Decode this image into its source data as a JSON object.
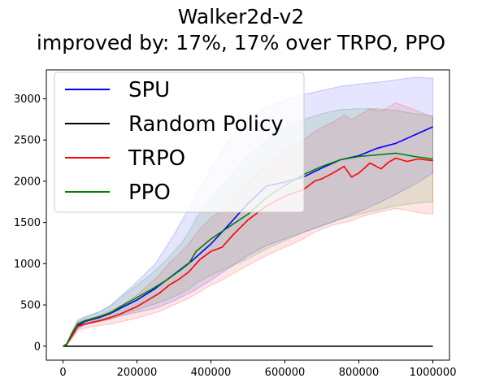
{
  "chart_data": {
    "type": "line",
    "title": "Walker2d-v2",
    "subtitle": "improved by: 17%, 17% over TRPO, PPO",
    "xlabel": "",
    "ylabel": "",
    "xlim": [
      -45000,
      1045000
    ],
    "ylim": [
      -170,
      3350
    ],
    "x_ticks": [
      0,
      200000,
      400000,
      600000,
      800000,
      1000000
    ],
    "x_tick_labels": [
      "0",
      "200000",
      "400000",
      "600000",
      "800000",
      "1000000"
    ],
    "y_ticks": [
      0,
      500,
      1000,
      1500,
      2000,
      2500,
      3000
    ],
    "y_tick_labels": [
      "0",
      "500",
      "1000",
      "1500",
      "2000",
      "2500",
      "3000"
    ],
    "grid": false,
    "legend_position": "top-left",
    "series": [
      {
        "name": "SPU",
        "color": "#0000ff",
        "x": [
          0,
          10000,
          25000,
          40000,
          60000,
          80000,
          100000,
          130000,
          160000,
          200000,
          250000,
          300000,
          350000,
          400000,
          450000,
          500000,
          550000,
          600000,
          650000,
          700000,
          750000,
          800000,
          850000,
          900000,
          950000,
          1000000
        ],
        "y": [
          0,
          20,
          140,
          250,
          300,
          325,
          350,
          400,
          470,
          560,
          700,
          870,
          1040,
          1240,
          1480,
          1730,
          1940,
          1990,
          2050,
          2160,
          2260,
          2310,
          2400,
          2460,
          2560,
          2660
        ],
        "band_low": [
          0,
          15,
          110,
          210,
          260,
          285,
          300,
          330,
          370,
          410,
          460,
          550,
          660,
          800,
          950,
          1100,
          1220,
          1300,
          1380,
          1460,
          1540,
          1630,
          1730,
          1840,
          1960,
          2100
        ],
        "band_high": [
          0,
          30,
          180,
          300,
          350,
          385,
          420,
          500,
          620,
          780,
          1000,
          1350,
          1750,
          2150,
          2500,
          2750,
          2900,
          2980,
          3050,
          3100,
          3150,
          3180,
          3200,
          3230,
          3260,
          3250
        ]
      },
      {
        "name": "Random Policy",
        "color": "#000000",
        "x": [
          0,
          1000000
        ],
        "y": [
          0,
          0
        ]
      },
      {
        "name": "TRPO",
        "color": "#ff0000",
        "x": [
          0,
          10000,
          25000,
          40000,
          60000,
          80000,
          100000,
          130000,
          160000,
          200000,
          230000,
          260000,
          290000,
          310000,
          340000,
          370000,
          400000,
          430000,
          460000,
          500000,
          550000,
          600000,
          650000,
          680000,
          700000,
          730000,
          760000,
          780000,
          800000,
          830000,
          860000,
          880000,
          900000,
          930000,
          960000,
          1000000
        ],
        "y": [
          0,
          20,
          130,
          240,
          270,
          290,
          310,
          350,
          400,
          480,
          560,
          640,
          750,
          800,
          900,
          1050,
          1150,
          1200,
          1350,
          1530,
          1700,
          1820,
          1900,
          2000,
          2030,
          2100,
          2180,
          2050,
          2100,
          2220,
          2150,
          2230,
          2280,
          2240,
          2270,
          2250
        ],
        "band_low": [
          0,
          15,
          100,
          190,
          220,
          235,
          250,
          270,
          300,
          340,
          380,
          420,
          480,
          520,
          580,
          660,
          740,
          800,
          880,
          980,
          1100,
          1200,
          1300,
          1380,
          1420,
          1470,
          1500,
          1520,
          1560,
          1600,
          1630,
          1650,
          1670,
          1650,
          1620,
          1600
        ],
        "band_high": [
          0,
          30,
          160,
          290,
          320,
          345,
          370,
          430,
          500,
          620,
          740,
          860,
          1020,
          1100,
          1240,
          1420,
          1560,
          1640,
          1800,
          1980,
          2200,
          2380,
          2500,
          2600,
          2650,
          2720,
          2800,
          2750,
          2800,
          2880,
          2850,
          2900,
          2950,
          2900,
          2850,
          2780
        ]
      },
      {
        "name": "PPO",
        "color": "#008000",
        "x": [
          0,
          10000,
          25000,
          40000,
          60000,
          80000,
          100000,
          130000,
          160000,
          200000,
          240000,
          280000,
          320000,
          340000,
          360000,
          400000,
          450000,
          500000,
          550000,
          600000,
          650000,
          700000,
          750000,
          800000,
          850000,
          900000,
          950000,
          1000000
        ],
        "y": [
          0,
          25,
          160,
          270,
          310,
          335,
          360,
          410,
          490,
          590,
          690,
          800,
          930,
          1000,
          1150,
          1300,
          1450,
          1600,
          1800,
          1950,
          2080,
          2180,
          2260,
          2300,
          2320,
          2340,
          2300,
          2270
        ],
        "band_low": [
          0,
          20,
          130,
          220,
          260,
          280,
          300,
          330,
          380,
          440,
          500,
          560,
          640,
          690,
          760,
          860,
          960,
          1060,
          1180,
          1280,
          1380,
          1460,
          1540,
          1600,
          1650,
          1700,
          1730,
          1750
        ],
        "band_high": [
          0,
          35,
          190,
          320,
          360,
          390,
          420,
          490,
          600,
          740,
          880,
          1050,
          1250,
          1380,
          1550,
          1800,
          2050,
          2300,
          2500,
          2650,
          2750,
          2820,
          2870,
          2880,
          2880,
          2860,
          2820,
          2790
        ]
      }
    ]
  }
}
